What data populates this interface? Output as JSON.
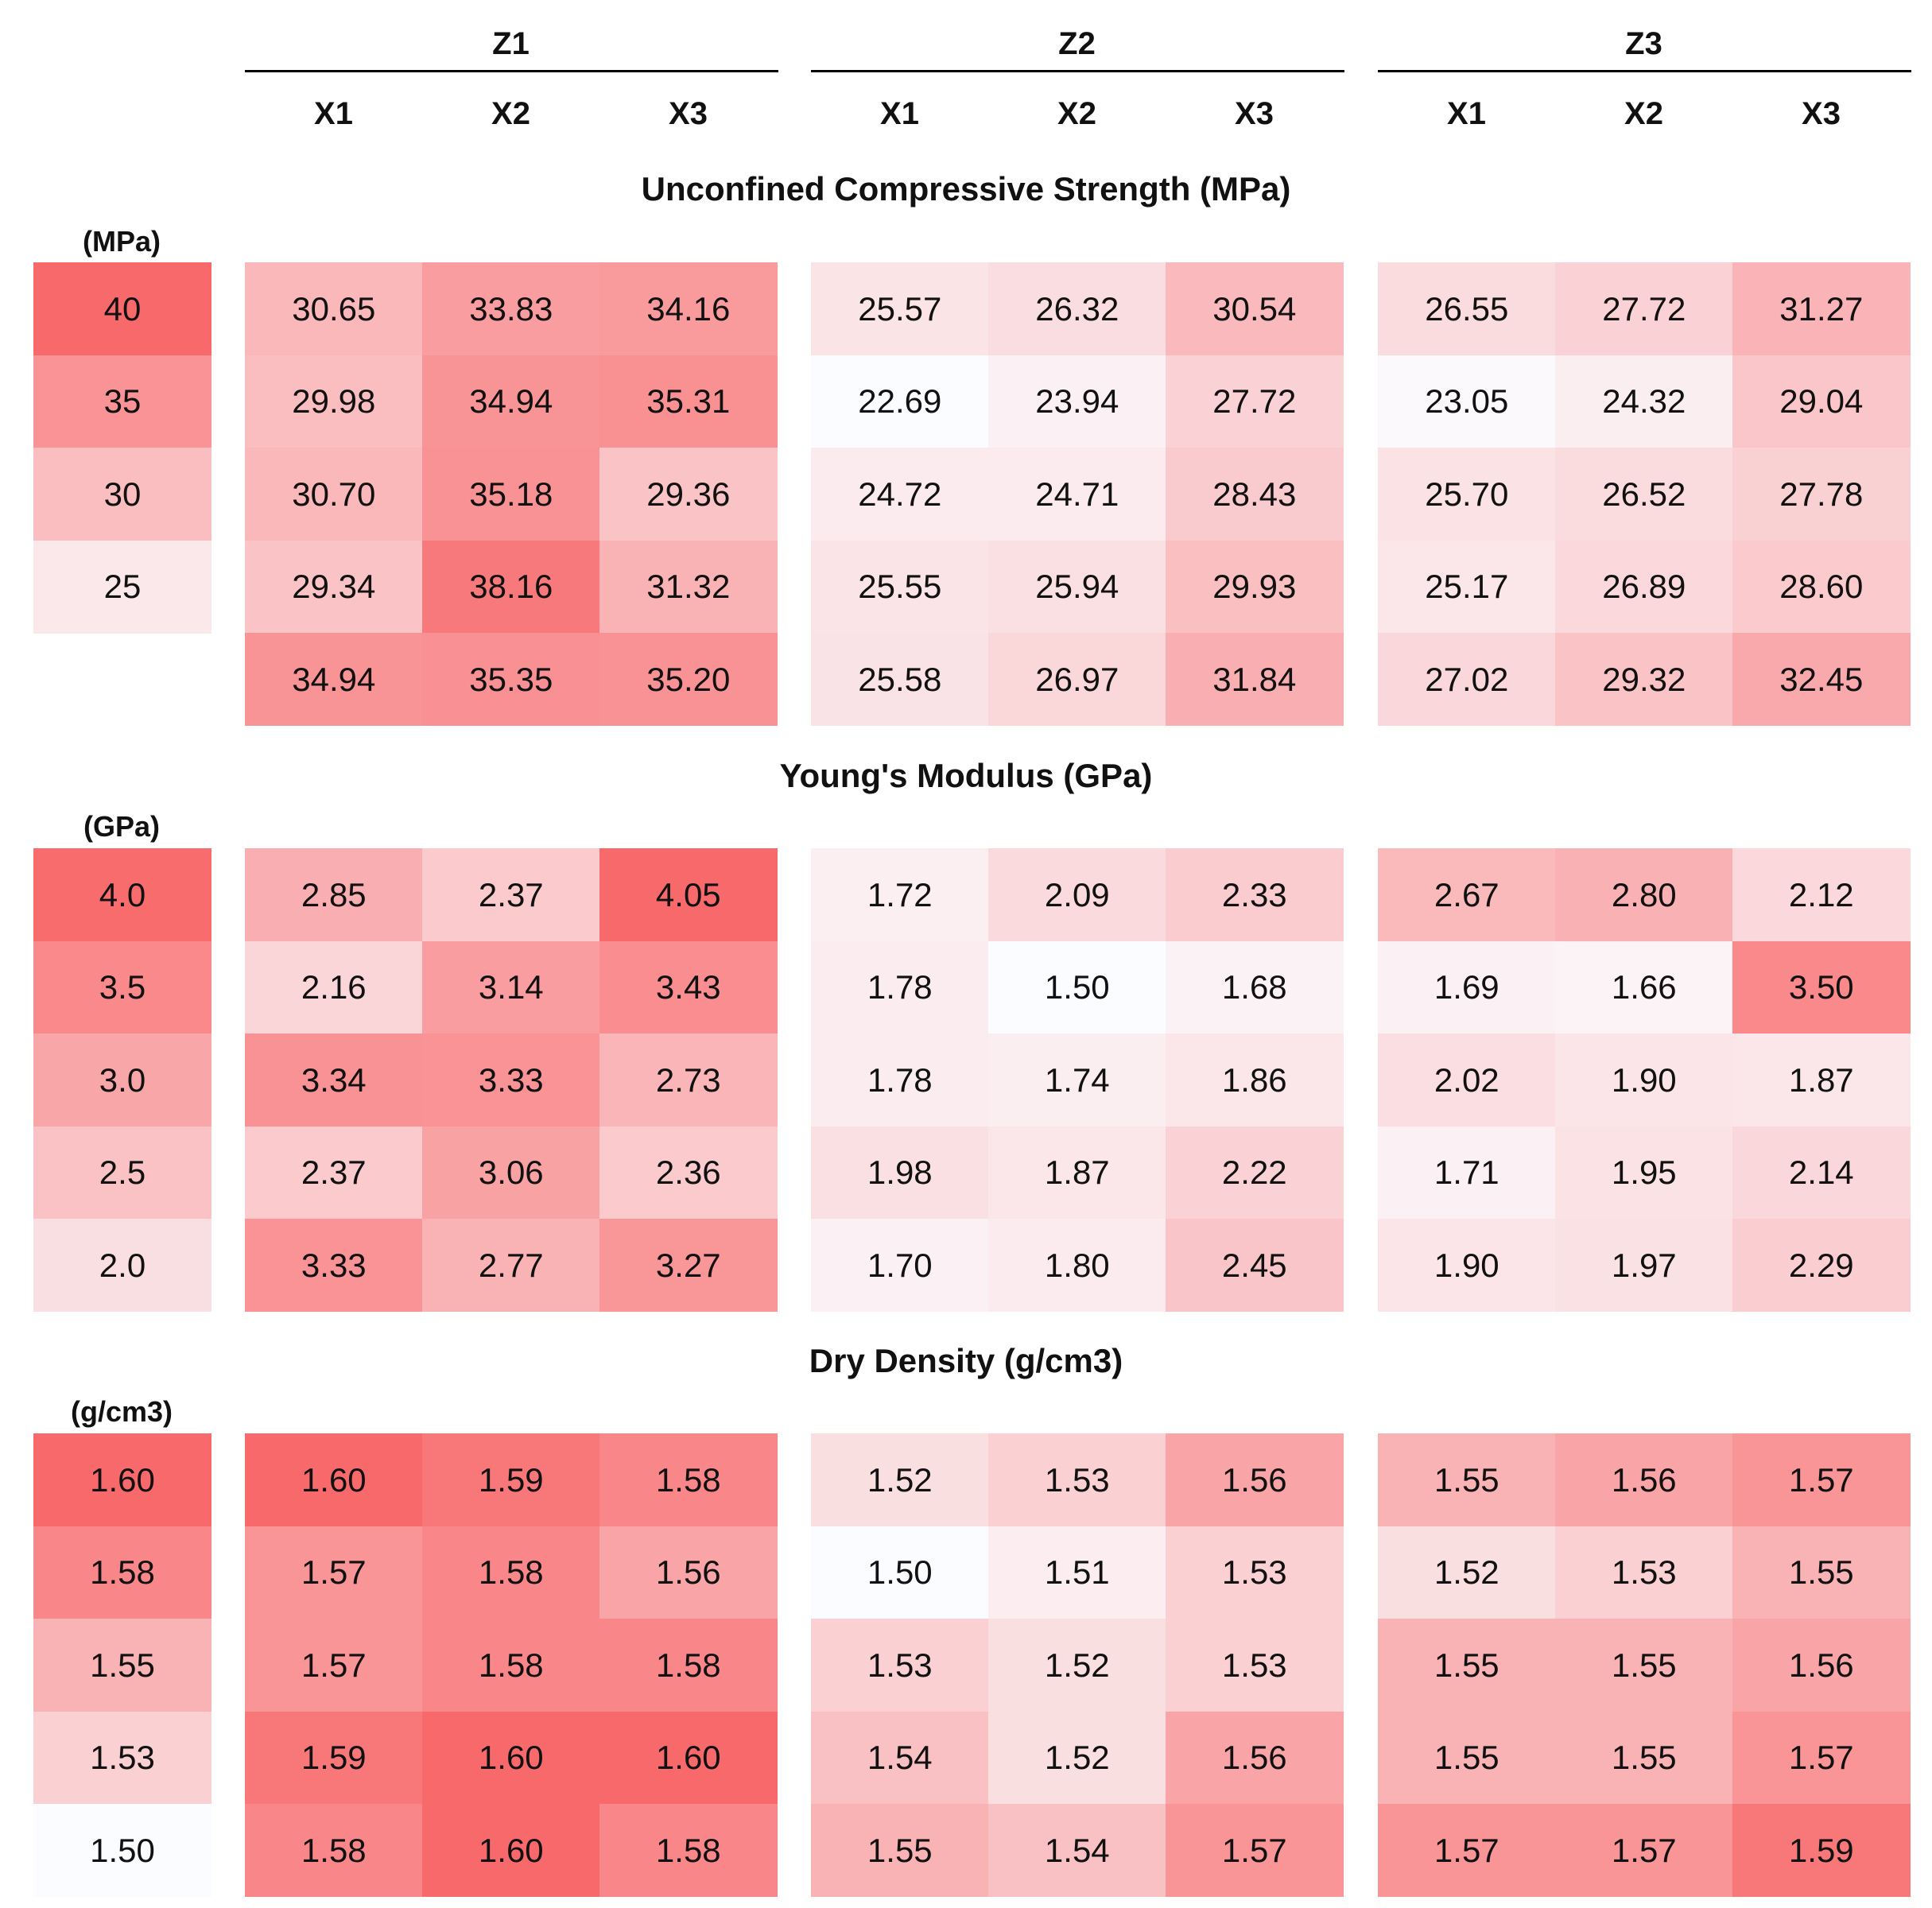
{
  "chart_data": {
    "type": "heatmap",
    "colors": {
      "low": "#fbfcff",
      "high": "#f8696b"
    },
    "groups": [
      "Z1",
      "Z2",
      "Z3"
    ],
    "columns": [
      "X1",
      "X2",
      "X3"
    ],
    "panels": [
      {
        "title": "Unconfined Compressive Strength (MPa)",
        "unit": "(MPa)",
        "legend": {
          "values": [
            "40",
            "35",
            "30",
            "25"
          ],
          "levels": [
            40,
            35,
            30,
            25
          ]
        },
        "scale": {
          "min": 22.69,
          "max": 40
        },
        "blocks": [
          [
            [
              "30.65",
              "33.83",
              "34.16"
            ],
            [
              "29.98",
              "34.94",
              "35.31"
            ],
            [
              "30.70",
              "35.18",
              "29.36"
            ],
            [
              "29.34",
              "38.16",
              "31.32"
            ],
            [
              "34.94",
              "35.35",
              "35.20"
            ]
          ],
          [
            [
              "25.57",
              "26.32",
              "30.54"
            ],
            [
              "22.69",
              "23.94",
              "27.72"
            ],
            [
              "24.72",
              "24.71",
              "28.43"
            ],
            [
              "25.55",
              "25.94",
              "29.93"
            ],
            [
              "25.58",
              "26.97",
              "31.84"
            ]
          ],
          [
            [
              "26.55",
              "27.72",
              "31.27"
            ],
            [
              "23.05",
              "24.32",
              "29.04"
            ],
            [
              "25.70",
              "26.52",
              "27.78"
            ],
            [
              "25.17",
              "26.89",
              "28.60"
            ],
            [
              "27.02",
              "29.32",
              "32.45"
            ]
          ]
        ]
      },
      {
        "title": "Young's Modulus (GPa)",
        "unit": "(GPa)",
        "legend": {
          "values": [
            "4.0",
            "3.5",
            "3.0",
            "2.5",
            "2.0"
          ],
          "levels": [
            4.0,
            3.5,
            3.0,
            2.5,
            2.0
          ]
        },
        "scale": {
          "min": 1.5,
          "max": 4.05
        },
        "blocks": [
          [
            [
              "2.85",
              "2.37",
              "4.05"
            ],
            [
              "2.16",
              "3.14",
              "3.43"
            ],
            [
              "3.34",
              "3.33",
              "2.73"
            ],
            [
              "2.37",
              "3.06",
              "2.36"
            ],
            [
              "3.33",
              "2.77",
              "3.27"
            ]
          ],
          [
            [
              "1.72",
              "2.09",
              "2.33"
            ],
            [
              "1.78",
              "1.50",
              "1.68"
            ],
            [
              "1.78",
              "1.74",
              "1.86"
            ],
            [
              "1.98",
              "1.87",
              "2.22"
            ],
            [
              "1.70",
              "1.80",
              "2.45"
            ]
          ],
          [
            [
              "2.67",
              "2.80",
              "2.12"
            ],
            [
              "1.69",
              "1.66",
              "3.50"
            ],
            [
              "2.02",
              "1.90",
              "1.87"
            ],
            [
              "1.71",
              "1.95",
              "2.14"
            ],
            [
              "1.90",
              "1.97",
              "2.29"
            ]
          ]
        ]
      },
      {
        "title": "Dry Density (g/cm3)",
        "unit": "(g/cm3)",
        "legend": {
          "values": [
            "1.60",
            "1.58",
            "1.55",
            "1.53",
            "1.50"
          ],
          "levels": [
            1.6,
            1.58,
            1.55,
            1.53,
            1.5
          ]
        },
        "scale": {
          "min": 1.5,
          "max": 1.6
        },
        "blocks": [
          [
            [
              "1.60",
              "1.59",
              "1.58"
            ],
            [
              "1.57",
              "1.58",
              "1.56"
            ],
            [
              "1.57",
              "1.58",
              "1.58"
            ],
            [
              "1.59",
              "1.60",
              "1.60"
            ],
            [
              "1.58",
              "1.60",
              "1.58"
            ]
          ],
          [
            [
              "1.52",
              "1.53",
              "1.56"
            ],
            [
              "1.50",
              "1.51",
              "1.53"
            ],
            [
              "1.53",
              "1.52",
              "1.53"
            ],
            [
              "1.54",
              "1.52",
              "1.56"
            ],
            [
              "1.55",
              "1.54",
              "1.57"
            ]
          ],
          [
            [
              "1.55",
              "1.56",
              "1.57"
            ],
            [
              "1.52",
              "1.53",
              "1.55"
            ],
            [
              "1.55",
              "1.55",
              "1.56"
            ],
            [
              "1.55",
              "1.55",
              "1.57"
            ],
            [
              "1.57",
              "1.57",
              "1.59"
            ]
          ]
        ]
      }
    ]
  }
}
